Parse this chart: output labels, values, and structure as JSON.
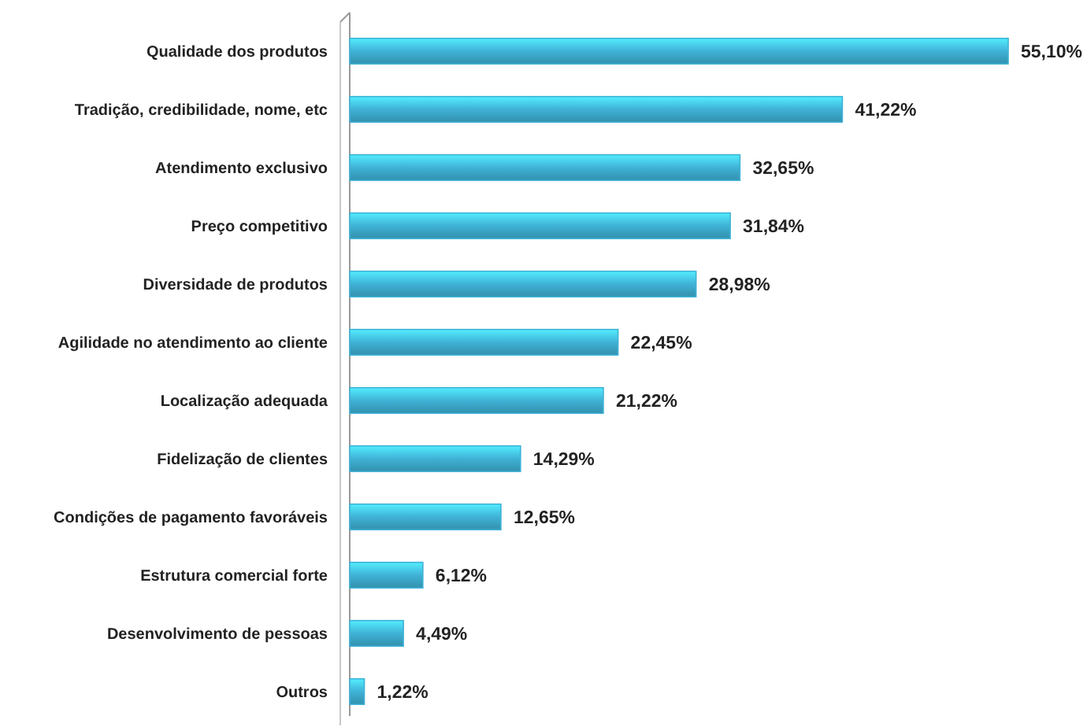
{
  "chart_data": {
    "type": "bar",
    "orientation": "horizontal",
    "categories": [
      "Qualidade dos produtos",
      "Tradição, credibilidade, nome, etc",
      "Atendimento exclusivo",
      "Preço competitivo",
      "Diversidade de produtos",
      "Agilidade no atendimento ao cliente",
      "Localização adequada",
      "Fidelização de clientes",
      "Condições de pagamento favoráveis",
      "Estrutura comercial forte",
      "Desenvolvimento de pessoas",
      "Outros"
    ],
    "values": [
      55.1,
      41.22,
      32.65,
      31.84,
      28.98,
      22.45,
      21.22,
      14.29,
      12.65,
      6.12,
      4.49,
      1.22
    ],
    "value_labels": [
      "55,10%",
      "41,22%",
      "32,65%",
      "31,84%",
      "28,98%",
      "22,45%",
      "21,22%",
      "14,29%",
      "12,65%",
      "6,12%",
      "4,49%",
      "1,22%"
    ],
    "color": "#3fb2d6"
  }
}
